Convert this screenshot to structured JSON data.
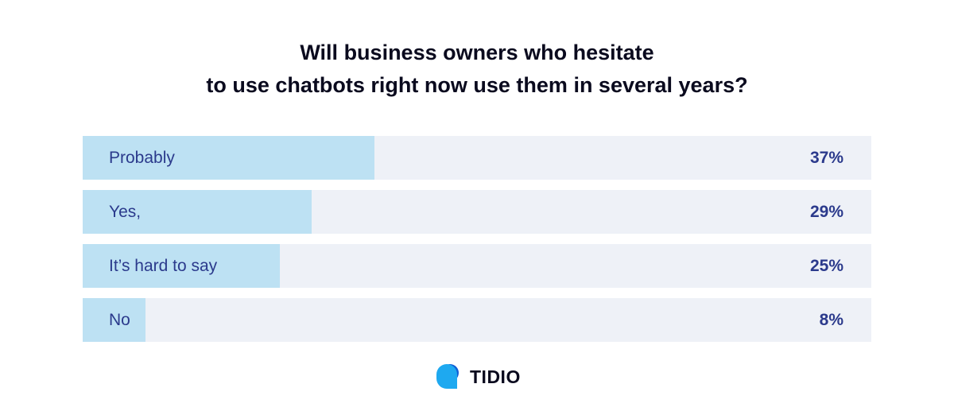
{
  "chart_data": {
    "type": "bar",
    "orientation": "horizontal",
    "title_lines": [
      "Will business owners who hesitate",
      "to use chatbots right now use them in several years?"
    ],
    "categories": [
      "Probably",
      "Yes,",
      "It’s hard to say",
      "No"
    ],
    "values": [
      37,
      29,
      25,
      8
    ],
    "value_labels": [
      "37%",
      "29%",
      "25%",
      "8%"
    ],
    "xlim": [
      0,
      100
    ],
    "grid": false,
    "legend": "none",
    "colors": {
      "bar": "#bde1f3",
      "track": "#eef1f7",
      "text": "#2b3a8c",
      "title": "#0a0a1e"
    }
  },
  "brand": {
    "name": "TIDIO",
    "icon": "tidio-logo-icon"
  }
}
